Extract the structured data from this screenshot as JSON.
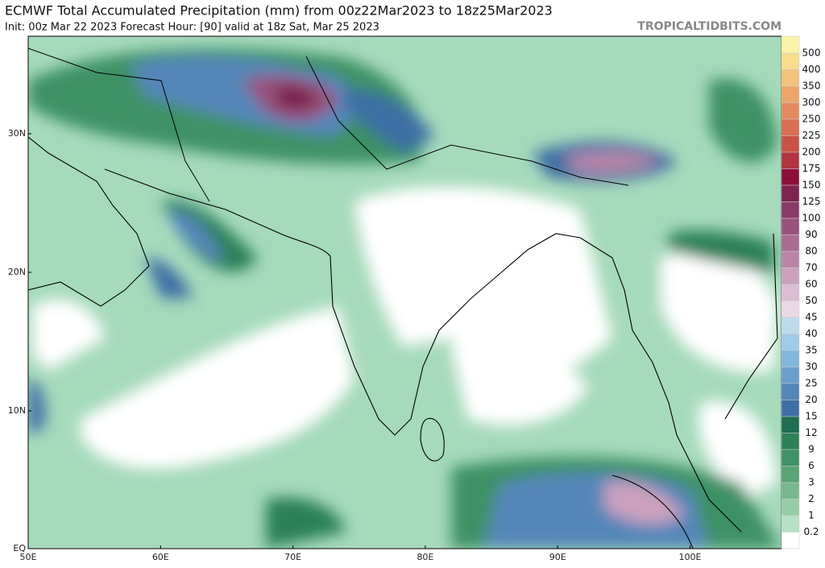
{
  "header": {
    "title": "ECMWF Total Accumulated Precipitation (mm) from 00z22Mar2023 to 18z25Mar2023",
    "subtitle": "Init: 00z Mar 22 2023   Forecast Hour: [90]   valid at 18z Sat, Mar 25 2023",
    "site": "TROPICALTIDBITS.COM"
  },
  "map": {
    "lat_labels": [
      "30N",
      "20N",
      "10N",
      "EQ"
    ],
    "lon_labels": [
      "50E",
      "60E",
      "70E",
      "80E",
      "90E",
      "100E"
    ]
  },
  "legend": {
    "levels": [
      "500",
      "400",
      "350",
      "300",
      "250",
      "225",
      "200",
      "175",
      "150",
      "125",
      "100",
      "90",
      "80",
      "70",
      "60",
      "50",
      "45",
      "40",
      "35",
      "30",
      "25",
      "20",
      "15",
      "12",
      "9",
      "6",
      "3",
      "2",
      "1",
      "0.2"
    ],
    "colors": [
      "#fdf3a8",
      "#f8dc8e",
      "#f3c27c",
      "#eca66c",
      "#e38a5e",
      "#d86e52",
      "#c95248",
      "#b2343f",
      "#8c0f3a",
      "#7c2450",
      "#8a3a68",
      "#98527d",
      "#a86c92",
      "#b986a8",
      "#cba1bd",
      "#dcbdd3",
      "#ebd8e6",
      "#bcdcee",
      "#9fcbe6",
      "#82b6da",
      "#6a9fcb",
      "#5486b9",
      "#3d6ea5",
      "#1f6e52",
      "#2c8157",
      "#3e9264",
      "#5aa476",
      "#78b88c",
      "#98cca4",
      "#b8e0c4",
      "#ffffff"
    ]
  }
}
